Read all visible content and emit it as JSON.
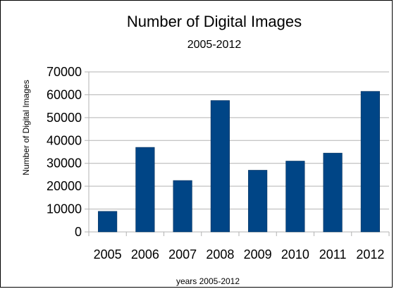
{
  "chart_data": {
    "type": "bar",
    "title": "Number of Digital Images",
    "subtitle": "2005-2012",
    "xlabel": "years 2005-2012",
    "ylabel": "Number of Digital Images",
    "categories": [
      "2005",
      "2006",
      "2007",
      "2008",
      "2009",
      "2010",
      "2011",
      "2012"
    ],
    "values": [
      9000,
      37000,
      22500,
      57500,
      27000,
      31000,
      34500,
      61500
    ],
    "ylim": [
      0,
      70000
    ],
    "yticks": [
      "0",
      "10000",
      "20000",
      "30000",
      "40000",
      "50000",
      "60000",
      "70000"
    ],
    "grid": true,
    "legend": "none",
    "colors": {
      "bar": "#004586",
      "bar_stroke": "#002a52",
      "grid": "#b3b3b3",
      "axis": "#b3b3b3"
    }
  }
}
